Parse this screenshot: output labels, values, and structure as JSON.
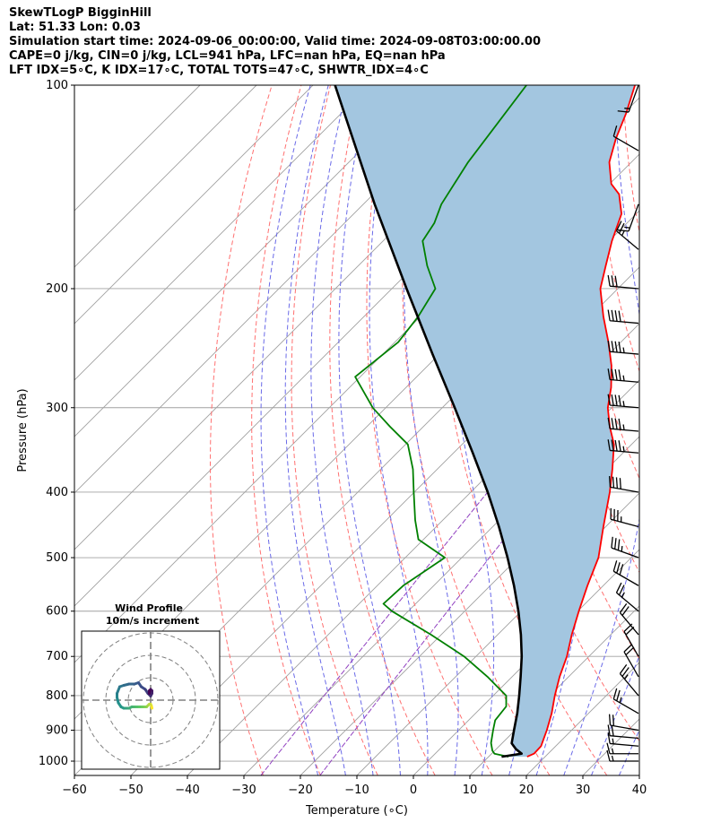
{
  "header": {
    "line1": "SkewTLogP BigginHill",
    "line2": "Lat: 51.33   Lon: 0.03",
    "line3": "Simulation start time: 2024-09-06_00:00:00, Valid time: 2024-09-08T03:00:00.00",
    "line4": "CAPE=0 j/kg, CIN=0 j/kg, LCL=941 hPa, LFC=nan hPa, EQ=nan hPa",
    "line5": "LFT IDX=5∘C, K IDX=17∘C, TOTAL TOTS=47∘C, SHWTR_IDX=4∘C"
  },
  "chart_data": [
    {
      "type": "line",
      "subtype": "skew-t log-p",
      "xlabel": "Temperature (∘C)",
      "ylabel": "Pressure (hPa)",
      "xlim": [
        -60,
        40
      ],
      "ylim": [
        1050,
        100
      ],
      "y_scale": "log",
      "x_ticks": [
        "−60",
        "−50",
        "−40",
        "−30",
        "−20",
        "−10",
        "0",
        "10",
        "20",
        "30",
        "40"
      ],
      "y_ticks": [
        "100",
        "200",
        "300",
        "400",
        "500",
        "600",
        "700",
        "800",
        "900",
        "1000"
      ],
      "grid": true,
      "colors": {
        "temperature": "#ff0000",
        "dewpoint": "#008000",
        "parcel": "#000000",
        "fill": "#a3c6e0",
        "dry_adiabat": "#ff7070",
        "moist_adiabat": "#6a6ae8",
        "mixing_ratio": "#9040c0",
        "isotherm": "#a0a0a0"
      },
      "series": [
        {
          "key": "temperature",
          "pressure": [
            985,
            975,
            950,
            900,
            850,
            800,
            750,
            700,
            650,
            600,
            550,
            500,
            450,
            400,
            370,
            340,
            320,
            300,
            280,
            260,
            240,
            220,
            200,
            185,
            170,
            155,
            145,
            140,
            130,
            120,
            110,
            100
          ],
          "temp": [
            16.8,
            17.5,
            17.4,
            15.6,
            13.5,
            10.9,
            8.4,
            6.1,
            3.1,
            0.2,
            -2.8,
            -5.8,
            -10.4,
            -15.4,
            -19.0,
            -23.1,
            -27.0,
            -30.7,
            -33.7,
            -37.5,
            -42.2,
            -47.6,
            -53.1,
            -56.2,
            -59.5,
            -62.6,
            -66.5,
            -69.7,
            -73.9,
            -76.9,
            -79.6,
            -83.0
          ]
        },
        {
          "key": "dewpoint",
          "pressure": [
            985,
            975,
            965,
            940,
            900,
            870,
            830,
            800,
            750,
            700,
            650,
            600,
            585,
            550,
            500,
            470,
            440,
            400,
            370,
            340,
            320,
            300,
            270,
            240,
            220,
            200,
            185,
            170,
            160,
            150,
            130,
            100
          ],
          "temp": [
            13.5,
            10.5,
            9.6,
            8.0,
            6.1,
            4.7,
            4.2,
            2.3,
            -4.4,
            -12.1,
            -21.8,
            -32.9,
            -35.7,
            -35.4,
            -33.0,
            -40.9,
            -44.9,
            -50.1,
            -54.3,
            -59.6,
            -65.9,
            -72.3,
            -80.9,
            -79.4,
            -80.4,
            -82.3,
            -87.8,
            -93.0,
            -94.1,
            -96.2,
            -98.9,
            -102.2
          ]
        },
        {
          "key": "parcel",
          "pressure": [
            985,
            975,
            960,
            941,
            900,
            850,
            800,
            750,
            700,
            650,
            600,
            550,
            500,
            450,
            400,
            350,
            300,
            250,
            200,
            150,
            100
          ],
          "temp": [
            12.3,
            15.3,
            13.5,
            11.7,
            9.8,
            7.4,
            4.6,
            1.5,
            -1.9,
            -5.9,
            -10.5,
            -15.8,
            -21.9,
            -28.9,
            -37.0,
            -46.6,
            -57.8,
            -71.2,
            -87.4,
            -108.0,
            -136.1
          ]
        }
      ]
    },
    {
      "type": "line",
      "subtype": "hodograph",
      "title": "Wind Profile",
      "subtitle": "10m/s increment",
      "rings_ms": [
        10,
        20,
        30
      ],
      "u": [
        1,
        0.5,
        0,
        -1,
        -2,
        -3,
        -4,
        -6,
        -8,
        -10,
        -12,
        -14,
        -16,
        -18,
        -20,
        -22,
        -24,
        -25,
        -25,
        -23,
        -20,
        -16,
        -12,
        -9,
        -7,
        -4,
        -2,
        0,
        1,
        1,
        0,
        -1,
        -1
      ],
      "v": [
        -6,
        -4,
        -3,
        -3,
        -4,
        -5,
        -5,
        -5,
        -5,
        -5,
        -5,
        -5,
        -6,
        -6,
        -6,
        -5,
        -2,
        2,
        5,
        10,
        11,
        12,
        12,
        13,
        10,
        8,
        5,
        3,
        5,
        7,
        8,
        7,
        5
      ]
    },
    {
      "type": "wind_barbs",
      "pressure": [
        100,
        125,
        150,
        175,
        200,
        225,
        250,
        275,
        300,
        325,
        350,
        400,
        450,
        500,
        550,
        600,
        650,
        700,
        750,
        800,
        850,
        900,
        925,
        950,
        975,
        1000
      ],
      "direction_deg": [
        200,
        300,
        200,
        310,
        275,
        275,
        275,
        275,
        275,
        275,
        275,
        280,
        285,
        290,
        300,
        310,
        320,
        330,
        330,
        320,
        300,
        280,
        275,
        275,
        270,
        270
      ],
      "speed_kt": [
        15,
        10,
        15,
        25,
        30,
        40,
        45,
        45,
        45,
        45,
        45,
        40,
        35,
        35,
        30,
        25,
        20,
        20,
        20,
        25,
        25,
        20,
        20,
        15,
        15,
        15
      ]
    }
  ]
}
